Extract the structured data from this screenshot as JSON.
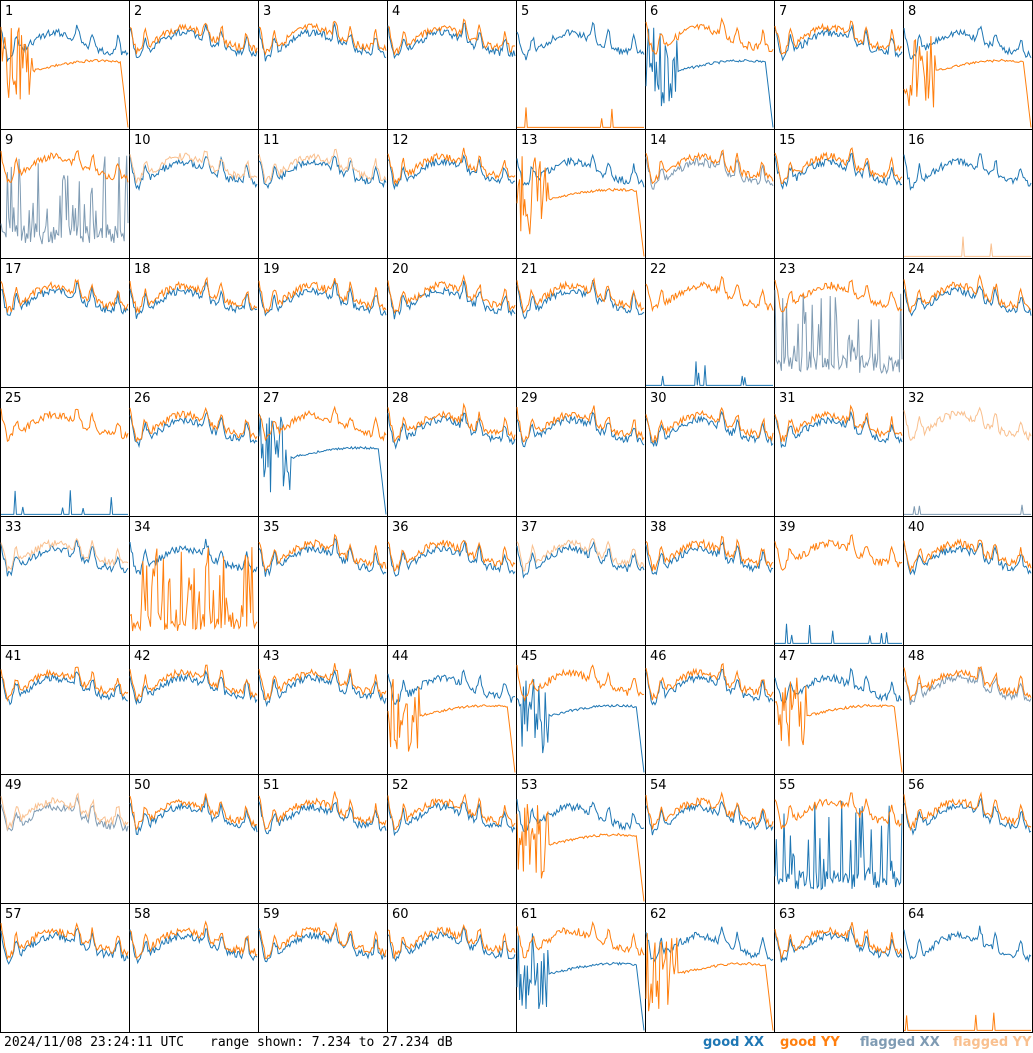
{
  "footer": {
    "timestamp": "2024/11/08 23:24:11 UTC",
    "range_text": "range shown: 7.234 to 27.234 dB"
  },
  "legend": [
    {
      "key": "good_xx",
      "label": "good XX",
      "color": "#1f77b4"
    },
    {
      "key": "good_yy",
      "label": "good YY",
      "color": "#ff7f0e"
    },
    {
      "key": "flagged_xx",
      "label": "flagged XX",
      "color": "#7f9bb3"
    },
    {
      "key": "flagged_yy",
      "label": "flagged YY",
      "color": "#f9c08f"
    }
  ],
  "chart_data": {
    "type": "line",
    "layout": "8x8 grid of small multiples",
    "x": "frequency channel (no axis labels shown)",
    "y_range_db": [
      7.234,
      27.234
    ],
    "grid": false,
    "legend_placement": "bottom-right",
    "panels": [
      {
        "id": "1",
        "xx": "normal",
        "yy": "dip"
      },
      {
        "id": "2",
        "xx": "normal",
        "yy": "normal"
      },
      {
        "id": "3",
        "xx": "normal",
        "yy": "normal"
      },
      {
        "id": "4",
        "xx": "normal",
        "yy": "normal"
      },
      {
        "id": "5",
        "xx": "normal",
        "yy": "flat"
      },
      {
        "id": "6",
        "xx": "dip",
        "yy": "normal"
      },
      {
        "id": "7",
        "xx": "normal",
        "yy": "normal"
      },
      {
        "id": "8",
        "xx": "normal",
        "yy": "dip"
      },
      {
        "id": "9",
        "xx": "flagged_spiky",
        "yy": "normal"
      },
      {
        "id": "10",
        "xx": "normal",
        "yy": "flagged_normal"
      },
      {
        "id": "11",
        "xx": "normal",
        "yy": "flagged_normal"
      },
      {
        "id": "12",
        "xx": "normal",
        "yy": "normal"
      },
      {
        "id": "13",
        "xx": "normal",
        "yy": "dip"
      },
      {
        "id": "14",
        "xx": "flagged_normal",
        "yy": "normal"
      },
      {
        "id": "15",
        "xx": "normal",
        "yy": "normal"
      },
      {
        "id": "16",
        "xx": "normal",
        "yy": "flagged_flat"
      },
      {
        "id": "17",
        "xx": "normal",
        "yy": "normal"
      },
      {
        "id": "18",
        "xx": "normal",
        "yy": "normal"
      },
      {
        "id": "19",
        "xx": "normal",
        "yy": "normal"
      },
      {
        "id": "20",
        "xx": "normal",
        "yy": "normal"
      },
      {
        "id": "21",
        "xx": "normal",
        "yy": "normal"
      },
      {
        "id": "22",
        "xx": "flat",
        "yy": "normal"
      },
      {
        "id": "23",
        "xx": "flagged_spiky",
        "yy": "normal"
      },
      {
        "id": "24",
        "xx": "normal",
        "yy": "normal"
      },
      {
        "id": "25",
        "xx": "flat",
        "yy": "normal"
      },
      {
        "id": "26",
        "xx": "normal",
        "yy": "normal"
      },
      {
        "id": "27",
        "xx": "dip",
        "yy": "normal"
      },
      {
        "id": "28",
        "xx": "normal",
        "yy": "normal"
      },
      {
        "id": "29",
        "xx": "normal",
        "yy": "normal"
      },
      {
        "id": "30",
        "xx": "normal",
        "yy": "normal"
      },
      {
        "id": "31",
        "xx": "normal",
        "yy": "normal"
      },
      {
        "id": "32",
        "xx": "flagged_flat",
        "yy": "flagged_normal"
      },
      {
        "id": "33",
        "xx": "normal",
        "yy": "flagged_normal"
      },
      {
        "id": "34",
        "xx": "normal",
        "yy": "spiky"
      },
      {
        "id": "35",
        "xx": "normal",
        "yy": "normal"
      },
      {
        "id": "36",
        "xx": "normal",
        "yy": "normal"
      },
      {
        "id": "37",
        "xx": "normal",
        "yy": "flagged_normal"
      },
      {
        "id": "38",
        "xx": "normal",
        "yy": "normal"
      },
      {
        "id": "39",
        "xx": "flat",
        "yy": "normal"
      },
      {
        "id": "40",
        "xx": "normal",
        "yy": "normal"
      },
      {
        "id": "41",
        "xx": "normal",
        "yy": "normal"
      },
      {
        "id": "42",
        "xx": "normal",
        "yy": "normal"
      },
      {
        "id": "43",
        "xx": "normal",
        "yy": "normal"
      },
      {
        "id": "44",
        "xx": "normal",
        "yy": "dip"
      },
      {
        "id": "45",
        "xx": "dip",
        "yy": "normal"
      },
      {
        "id": "46",
        "xx": "normal",
        "yy": "normal"
      },
      {
        "id": "47",
        "xx": "normal",
        "yy": "dip"
      },
      {
        "id": "48",
        "xx": "flagged_normal",
        "yy": "normal"
      },
      {
        "id": "49",
        "xx": "flagged_normal",
        "yy": "flagged_normal"
      },
      {
        "id": "50",
        "xx": "normal",
        "yy": "normal"
      },
      {
        "id": "51",
        "xx": "normal",
        "yy": "normal"
      },
      {
        "id": "52",
        "xx": "normal",
        "yy": "normal"
      },
      {
        "id": "53",
        "xx": "normal",
        "yy": "dip"
      },
      {
        "id": "54",
        "xx": "normal",
        "yy": "normal"
      },
      {
        "id": "55",
        "xx": "spiky",
        "yy": "normal"
      },
      {
        "id": "56",
        "xx": "normal",
        "yy": "normal"
      },
      {
        "id": "57",
        "xx": "normal",
        "yy": "normal"
      },
      {
        "id": "58",
        "xx": "normal",
        "yy": "normal"
      },
      {
        "id": "59",
        "xx": "normal",
        "yy": "normal"
      },
      {
        "id": "60",
        "xx": "normal",
        "yy": "normal"
      },
      {
        "id": "61",
        "xx": "dip",
        "yy": "normal"
      },
      {
        "id": "62",
        "xx": "normal",
        "yy": "dip"
      },
      {
        "id": "63",
        "xx": "normal",
        "yy": "normal"
      },
      {
        "id": "64",
        "xx": "normal",
        "yy": "flat"
      }
    ]
  }
}
